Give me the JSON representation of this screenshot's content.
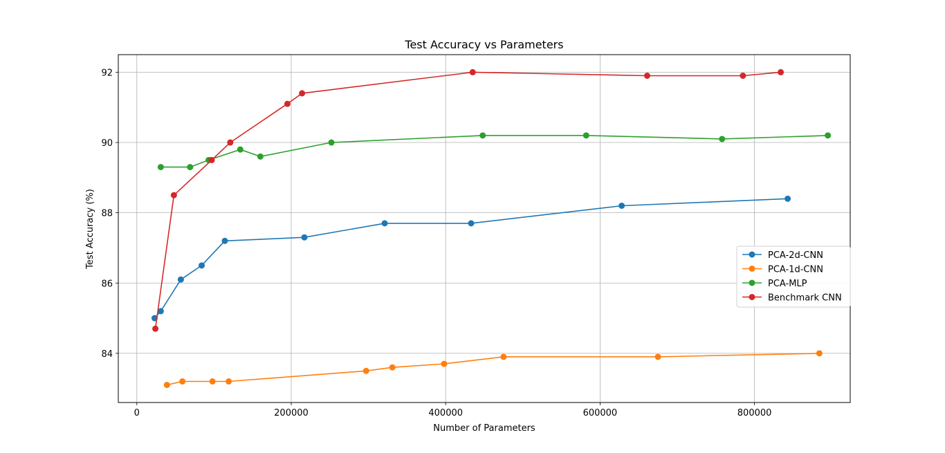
{
  "chart_data": {
    "type": "line",
    "title": "Test Accuracy vs Parameters",
    "xlabel": "Number of Parameters",
    "ylabel": "Test Accuracy (%)",
    "xlim": [
      -24000,
      924000
    ],
    "ylim": [
      82.6,
      92.5
    ],
    "xticks": [
      0,
      200000,
      400000,
      600000,
      800000
    ],
    "xtick_labels": [
      "0",
      "200000",
      "400000",
      "600000",
      "800000"
    ],
    "yticks": [
      84,
      86,
      88,
      90,
      92
    ],
    "ytick_labels": [
      "84",
      "86",
      "88",
      "90",
      "92"
    ],
    "grid": true,
    "legend_position": "center-right",
    "series": [
      {
        "name": "PCA-2d-CNN",
        "color": "#1f77b4",
        "x": [
          23000,
          31000,
          57000,
          84000,
          114000,
          217000,
          321000,
          433000,
          628000,
          843000
        ],
        "y": [
          85.0,
          85.2,
          86.1,
          86.5,
          87.2,
          87.3,
          87.7,
          87.7,
          88.2,
          88.4
        ]
      },
      {
        "name": "PCA-1d-CNN",
        "color": "#ff7f0e",
        "x": [
          39000,
          59000,
          98000,
          119000,
          297000,
          331000,
          398000,
          475000,
          675000,
          884000
        ],
        "y": [
          83.1,
          83.2,
          83.2,
          83.2,
          83.5,
          83.6,
          83.7,
          83.9,
          83.9,
          84.0
        ]
      },
      {
        "name": "PCA-MLP",
        "color": "#2ca02c",
        "x": [
          31000,
          69000,
          93000,
          134000,
          160000,
          252000,
          448000,
          582000,
          758000,
          895000
        ],
        "y": [
          89.3,
          89.3,
          89.5,
          89.8,
          89.6,
          90.0,
          90.2,
          90.2,
          90.1,
          90.2
        ]
      },
      {
        "name": "Benchmark CNN",
        "color": "#d62728",
        "x": [
          24000,
          48000,
          97000,
          121000,
          195000,
          214000,
          435000,
          661000,
          785000,
          834000
        ],
        "y": [
          84.7,
          88.5,
          89.5,
          90.0,
          91.1,
          91.4,
          92.0,
          91.9,
          91.9,
          92.0
        ]
      }
    ]
  }
}
